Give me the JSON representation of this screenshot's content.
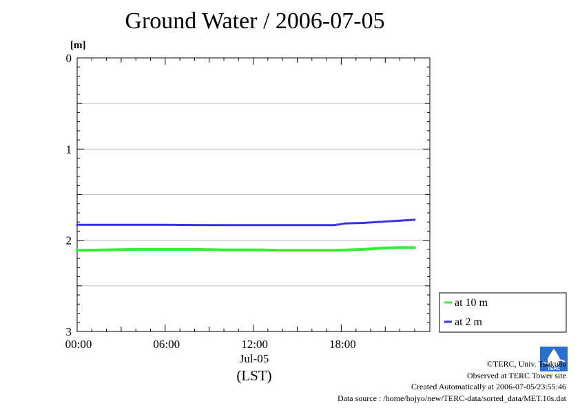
{
  "chart_data": {
    "type": "line",
    "title": "Ground Water / 2006-07-05",
    "y_unit": "[m]",
    "xlabel": "(LST)",
    "date_label": "Jul-05",
    "x_range_hours": [
      0,
      23.2
    ],
    "ylim": [
      0,
      3
    ],
    "y_inverted": true,
    "y_ticks": [
      "0",
      "1",
      "2",
      "3"
    ],
    "x_ticks": [
      {
        "hour": 0,
        "label": "00:00"
      },
      {
        "hour": 6,
        "label": "06:00"
      },
      {
        "hour": 12,
        "label": "12:00"
      },
      {
        "hour": 18,
        "label": "18:00"
      }
    ],
    "grid": true,
    "legend_position": "right-bottom",
    "series": [
      {
        "name": "at 10 m",
        "color": "#33ee33",
        "x": [
          0,
          2,
          4,
          6,
          8,
          10,
          12,
          14,
          16,
          17.5,
          18.5,
          19.5,
          21,
          22,
          23
        ],
        "y": [
          2.11,
          2.105,
          2.1,
          2.1,
          2.1,
          2.105,
          2.105,
          2.11,
          2.11,
          2.11,
          2.105,
          2.1,
          2.085,
          2.08,
          2.08
        ]
      },
      {
        "name": "at 2 m",
        "color": "#3333ee",
        "x": [
          0,
          2,
          4,
          6,
          8,
          10,
          12,
          14,
          16,
          17.5,
          18.3,
          19.5,
          21,
          22,
          23
        ],
        "y": [
          1.83,
          1.83,
          1.83,
          1.83,
          1.833,
          1.835,
          1.835,
          1.835,
          1.835,
          1.835,
          1.815,
          1.81,
          1.795,
          1.785,
          1.775
        ]
      }
    ]
  },
  "footer": {
    "copyright": "©TERC, Univ. Tsukuba",
    "observed": "Observed at TERC Tower site",
    "created": "Created Automatically at 2006-07-05/23:55:46",
    "source": "Data source : /home/hojyo/new/TERC-data/sorted_data/MET.10s.dat"
  },
  "logo_text": "TERC"
}
